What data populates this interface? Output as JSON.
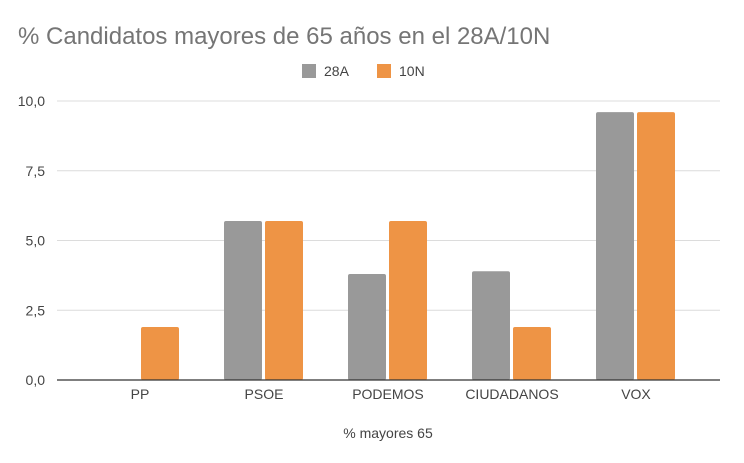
{
  "chart_data": {
    "type": "bar",
    "title": "% Candidatos mayores de 65 años en el 28A/10N",
    "xlabel": "% mayores 65",
    "ylabel": "",
    "categories": [
      "PP",
      "PSOE",
      "PODEMOS",
      "CIUDADANOS",
      "VOX"
    ],
    "series": [
      {
        "name": "28A",
        "color": "#999999",
        "values": [
          0,
          5.7,
          3.8,
          3.9,
          9.6
        ]
      },
      {
        "name": "10N",
        "color": "#EE9445",
        "values": [
          1.9,
          5.7,
          5.7,
          1.9,
          9.6
        ]
      }
    ],
    "ylim": [
      0,
      10
    ],
    "yticks": [
      "0,0",
      "2,5",
      "5,0",
      "7,5",
      "10,0"
    ],
    "grid": true,
    "legend": "top"
  }
}
